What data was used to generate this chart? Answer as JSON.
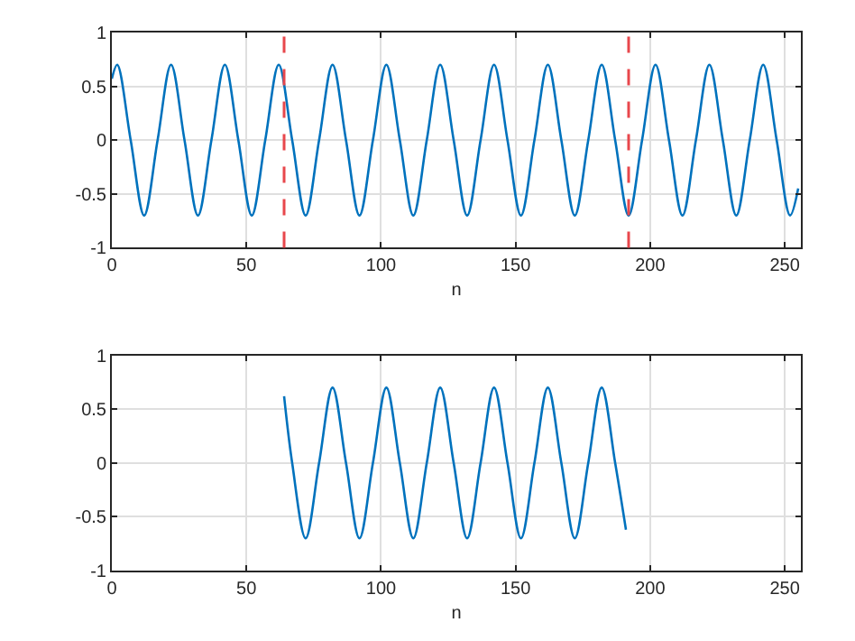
{
  "chart_data": [
    {
      "type": "line",
      "xlabel": "n",
      "xlim": [
        0,
        256
      ],
      "ylim": [
        -1,
        1
      ],
      "xticks": [
        0,
        50,
        100,
        150,
        200,
        250
      ],
      "yticks": [
        -1,
        -0.5,
        0,
        0.5,
        1
      ],
      "grid": true,
      "line_style": "solid",
      "marker": "none",
      "series": [
        {
          "color": "#0072bd",
          "x": [
            0,
            2,
            7,
            12,
            17,
            22,
            27,
            32,
            37,
            42,
            47,
            52,
            57,
            62,
            67,
            72,
            77,
            82,
            87,
            92,
            97,
            102,
            107,
            112,
            117,
            122,
            127,
            132,
            137,
            142,
            147,
            152,
            157,
            162,
            167,
            172,
            177,
            182,
            187,
            192,
            197,
            202,
            207,
            212,
            217,
            222,
            227,
            232,
            237,
            242,
            247,
            252,
            255
          ],
          "values": [
            0.57,
            0.7,
            0,
            -0.7,
            0,
            0.7,
            0,
            -0.7,
            0,
            0.7,
            0,
            -0.7,
            0,
            0.7,
            0,
            -0.7,
            0,
            0.7,
            0,
            -0.7,
            0,
            0.7,
            0,
            -0.7,
            0,
            0.7,
            0,
            -0.7,
            0,
            0.7,
            0,
            -0.7,
            0,
            0.7,
            0,
            -0.7,
            0,
            0.7,
            0,
            -0.7,
            0,
            0.7,
            0,
            -0.7,
            0,
            0.7,
            0,
            -0.7,
            0,
            0.7,
            0,
            -0.7,
            -0.45
          ]
        }
      ],
      "ref_lines": [
        {
          "axis": "x",
          "value": 64,
          "color": "#e8474c",
          "line_style": "dashed"
        },
        {
          "axis": "x",
          "value": 192,
          "color": "#e8474c",
          "line_style": "dashed"
        }
      ]
    },
    {
      "type": "line",
      "xlabel": "n",
      "xlim": [
        0,
        256
      ],
      "ylim": [
        -1,
        1
      ],
      "xticks": [
        0,
        50,
        100,
        150,
        200,
        250
      ],
      "yticks": [
        -1,
        -0.5,
        0,
        0.5,
        1
      ],
      "grid": true,
      "line_style": "solid",
      "marker": "none",
      "series": [
        {
          "color": "#0072bd",
          "x": [
            64,
            67,
            72,
            77,
            82,
            87,
            92,
            97,
            102,
            107,
            112,
            117,
            122,
            127,
            132,
            137,
            142,
            147,
            152,
            157,
            162,
            167,
            172,
            177,
            182,
            187,
            191
          ],
          "values": [
            0.62,
            0,
            -0.7,
            0,
            0.7,
            0,
            -0.7,
            0,
            0.7,
            0,
            -0.7,
            0,
            0.7,
            0,
            -0.7,
            0,
            0.7,
            0,
            -0.7,
            0,
            0.7,
            0,
            -0.7,
            0,
            0.7,
            0,
            -0.62
          ]
        }
      ]
    }
  ]
}
